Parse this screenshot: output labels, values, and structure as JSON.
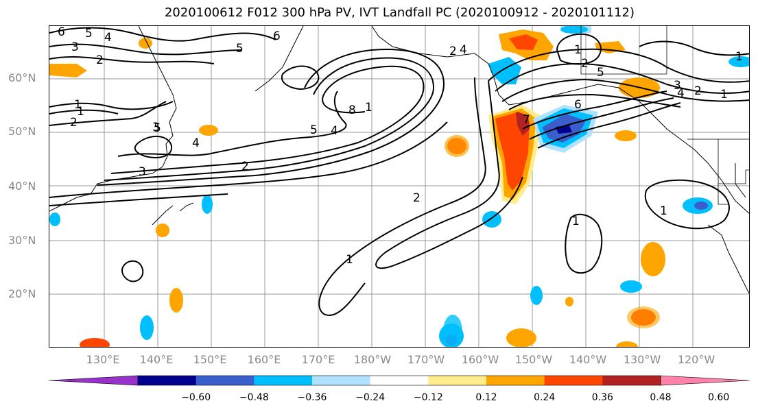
{
  "title": "2020100612 F012 300 hPa PV, IVT Landfall PC (2020100912 - 2020101112)",
  "lat_labels": [
    "60°N",
    "50°N",
    "40°N",
    "30°N",
    "20°N"
  ],
  "lon_labels": [
    "130°E",
    "140°E",
    "150°E",
    "160°E",
    "170°E",
    "180°W",
    "170°W",
    "160°W",
    "150°W",
    "140°W",
    "130°W",
    "120°W"
  ],
  "colorbar": {
    "colors": [
      "#9932cc",
      "#00008b",
      "#3a5fcd",
      "#00bfff",
      "#b0e2ff",
      "#ffffff",
      "#ffec8b",
      "#ffa500",
      "#ff4500",
      "#b22222",
      "#ff82ab"
    ],
    "ticks": [
      "−0.60",
      "−0.48",
      "−0.36",
      "−0.24",
      "−0.12",
      "0.12",
      "0.24",
      "0.36",
      "0.48",
      "0.60"
    ]
  },
  "contour_labels": [
    "6",
    "5",
    "4",
    "3",
    "2",
    "1",
    "1",
    "2",
    "3",
    "5",
    "4",
    "3",
    "2",
    "5",
    "6",
    "1",
    "8",
    "4",
    "5",
    "2",
    "1",
    "2",
    "1",
    "1",
    "1",
    "2",
    "4",
    "5",
    "3",
    "4",
    "1",
    "2",
    "6",
    "1",
    "7"
  ]
}
